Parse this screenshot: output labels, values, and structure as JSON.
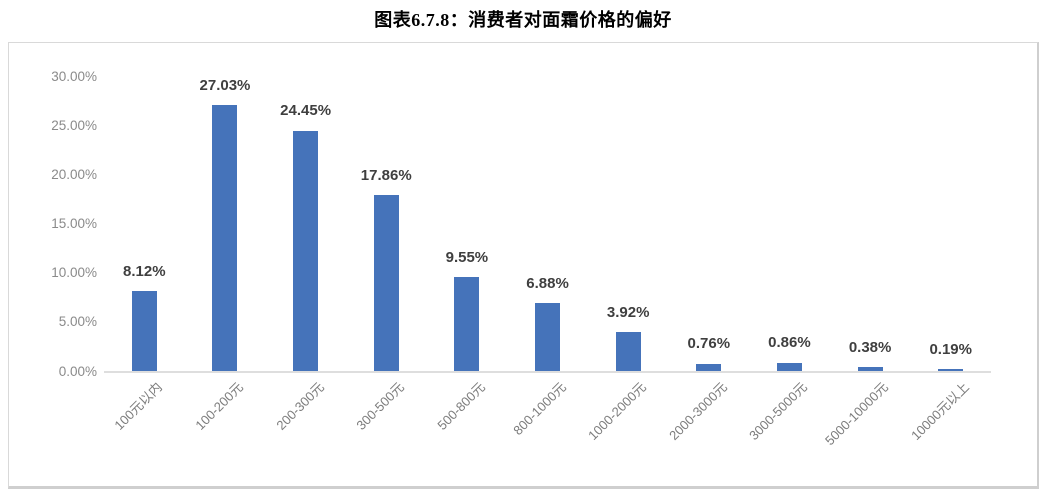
{
  "title": "图表6.7.8：消费者对面霜价格的偏好",
  "chart_data": {
    "type": "bar",
    "title": "图表6.7.8：消费者对面霜价格的偏好",
    "categories": [
      "100元以内",
      "100-200元",
      "200-300元",
      "300-500元",
      "500-800元",
      "800-1000元",
      "1000-2000元",
      "2000-3000元",
      "3000-5000元",
      "5000-10000元",
      "10000元以上"
    ],
    "values": [
      8.12,
      27.03,
      24.45,
      17.86,
      9.55,
      6.88,
      3.92,
      0.76,
      0.86,
      0.38,
      0.19
    ],
    "value_labels": [
      "8.12%",
      "27.03%",
      "24.45%",
      "17.86%",
      "9.55%",
      "6.88%",
      "3.92%",
      "0.76%",
      "0.86%",
      "0.38%",
      "0.19%"
    ],
    "y_ticks": [
      "0.00%",
      "5.00%",
      "10.00%",
      "15.00%",
      "20.00%",
      "25.00%",
      "30.00%"
    ],
    "ylim": [
      0,
      30
    ],
    "xlabel": "",
    "ylabel": "",
    "grid": false,
    "legend": "none",
    "data_label_position": "outside-end",
    "x_label_rotation_deg": -45,
    "colors": {
      "bar": "#4573ba",
      "axis_line": "#dedede",
      "tick_text": "#8a8a8a",
      "value_text": "#3f3f3f",
      "title_text": "#000000",
      "chart_border": "#d9d9d9"
    }
  }
}
